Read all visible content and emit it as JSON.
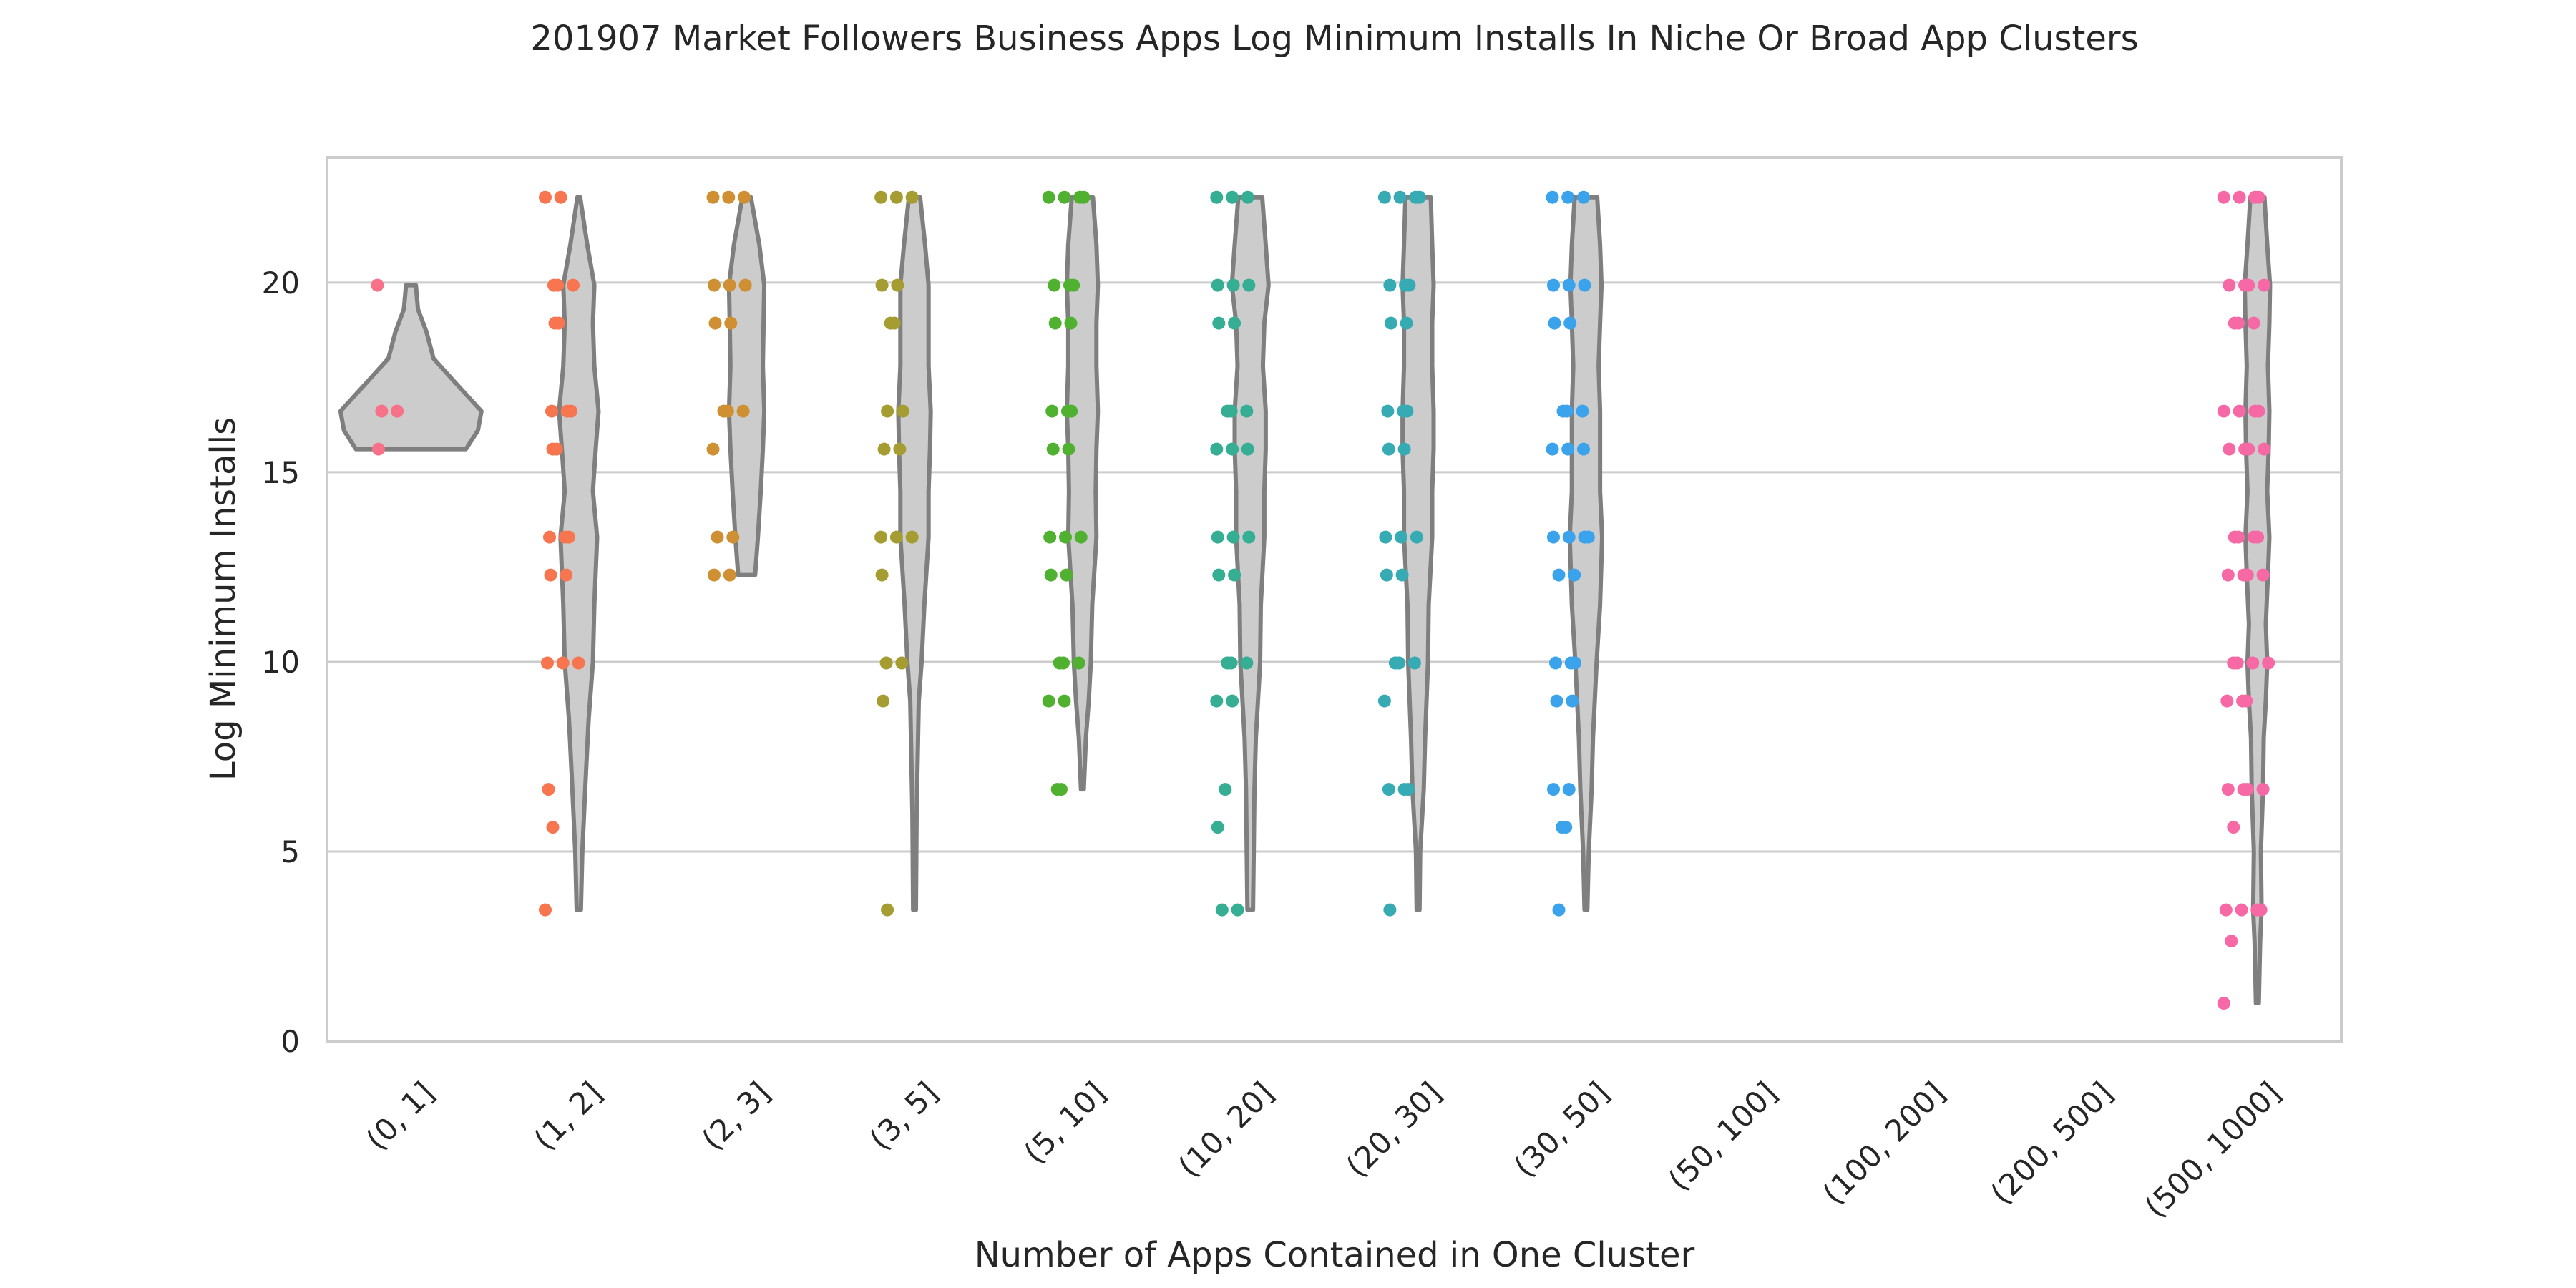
{
  "chart_data": {
    "type": "violin",
    "title": "201907 Market Followers Business Apps Log Minimum Installs In Niche Or Broad App Clusters",
    "xlabel": "Number of Apps Contained in One Cluster",
    "ylabel": "Log Minimum Installs",
    "ylim": [
      0,
      23.3
    ],
    "yticks": [
      0,
      5,
      10,
      15,
      20
    ],
    "grid": "horizontal",
    "categories": [
      "(0, 1]",
      "(1, 2]",
      "(2, 3]",
      "(3, 5]",
      "(5, 10]",
      "(10, 20]",
      "(20, 30]",
      "(30, 50]",
      "(50, 100]",
      "(100, 200]",
      "(200, 500]",
      "(500, 1000]"
    ],
    "colors": [
      "#f77189",
      "#f7754f",
      "#ce9032",
      "#a59d31",
      "#50b131",
      "#35ae93",
      "#37abb4",
      "#3ba3ec",
      "#b87ef4",
      "#f45fd0",
      "#f565af",
      "#f669a5"
    ],
    "violin_fill": "#cccccc",
    "violin_edge": "#7f7f7f",
    "series": [
      {
        "category": "(0, 1]",
        "points": [
          19.93,
          16.61,
          16.61,
          15.61
        ],
        "violin": {
          "min": 15.61,
          "max": 19.93,
          "profile": [
            [
              15.61,
              0.78
            ],
            [
              16.1,
              0.95
            ],
            [
              16.61,
              1.0
            ],
            [
              17.3,
              0.66
            ],
            [
              18.0,
              0.32
            ],
            [
              18.7,
              0.22
            ],
            [
              19.3,
              0.1
            ],
            [
              19.93,
              0.07
            ]
          ]
        }
      },
      {
        "category": "(1, 2]",
        "points": [
          22.25,
          22.25,
          19.93,
          19.93,
          19.93,
          18.93,
          18.93,
          16.61,
          16.61,
          16.61,
          15.61,
          15.61,
          13.29,
          13.29,
          13.29,
          12.29,
          12.29,
          9.97,
          9.97,
          9.97,
          6.64,
          5.64,
          3.46
        ],
        "violin": {
          "min": 3.46,
          "max": 22.25,
          "profile": [
            [
              3.46,
              0.03
            ],
            [
              5.0,
              0.05
            ],
            [
              7.0,
              0.1
            ],
            [
              8.5,
              0.14
            ],
            [
              10.0,
              0.2
            ],
            [
              11.5,
              0.22
            ],
            [
              13.29,
              0.26
            ],
            [
              14.5,
              0.2
            ],
            [
              15.61,
              0.24
            ],
            [
              16.61,
              0.28
            ],
            [
              17.8,
              0.22
            ],
            [
              18.93,
              0.2
            ],
            [
              19.93,
              0.22
            ],
            [
              21.0,
              0.12
            ],
            [
              22.25,
              0.02
            ]
          ]
        }
      },
      {
        "category": "(2, 3]",
        "points": [
          22.25,
          22.25,
          22.25,
          19.93,
          19.93,
          19.93,
          18.93,
          18.93,
          16.61,
          16.61,
          16.61,
          15.61,
          13.29,
          13.29,
          12.29,
          12.29
        ],
        "violin": {
          "min": 12.29,
          "max": 22.25,
          "profile": [
            [
              12.29,
              0.12
            ],
            [
              13.29,
              0.16
            ],
            [
              14.5,
              0.2
            ],
            [
              15.61,
              0.23
            ],
            [
              16.61,
              0.25
            ],
            [
              17.8,
              0.23
            ],
            [
              18.93,
              0.24
            ],
            [
              19.93,
              0.25
            ],
            [
              21.0,
              0.18
            ],
            [
              22.25,
              0.06
            ]
          ]
        }
      },
      {
        "category": "(3, 5]",
        "points": [
          22.25,
          22.25,
          22.25,
          19.93,
          19.93,
          18.93,
          18.93,
          16.61,
          16.61,
          15.61,
          15.61,
          13.29,
          13.29,
          13.29,
          12.29,
          9.97,
          9.97,
          8.97,
          3.46
        ],
        "violin": {
          "min": 3.46,
          "max": 22.25,
          "profile": [
            [
              3.46,
              0.02
            ],
            [
              6.0,
              0.03
            ],
            [
              8.97,
              0.06
            ],
            [
              9.97,
              0.1
            ],
            [
              11.5,
              0.14
            ],
            [
              13.29,
              0.2
            ],
            [
              14.5,
              0.2
            ],
            [
              15.61,
              0.22
            ],
            [
              16.61,
              0.23
            ],
            [
              17.8,
              0.2
            ],
            [
              18.93,
              0.2
            ],
            [
              19.93,
              0.2
            ],
            [
              21.0,
              0.15
            ],
            [
              22.25,
              0.08
            ]
          ]
        }
      },
      {
        "category": "(5, 10]",
        "points": [
          22.25,
          22.25,
          22.25,
          22.25,
          19.93,
          19.93,
          19.93,
          18.93,
          18.93,
          16.61,
          16.61,
          16.61,
          15.61,
          15.61,
          13.29,
          13.29,
          13.29,
          12.29,
          12.29,
          9.97,
          9.97,
          9.97,
          8.97,
          8.97,
          6.64,
          6.64
        ],
        "violin": {
          "min": 6.64,
          "max": 22.25,
          "profile": [
            [
              6.64,
              0.02
            ],
            [
              8.0,
              0.05
            ],
            [
              8.97,
              0.09
            ],
            [
              9.97,
              0.12
            ],
            [
              11.5,
              0.14
            ],
            [
              13.29,
              0.2
            ],
            [
              14.5,
              0.19
            ],
            [
              15.61,
              0.2
            ],
            [
              16.61,
              0.22
            ],
            [
              17.8,
              0.2
            ],
            [
              18.93,
              0.2
            ],
            [
              19.93,
              0.22
            ],
            [
              21.0,
              0.2
            ],
            [
              22.25,
              0.15
            ]
          ]
        }
      },
      {
        "category": "(10, 20]",
        "points": [
          22.25,
          22.25,
          22.25,
          19.93,
          19.93,
          19.93,
          18.93,
          18.93,
          16.61,
          16.61,
          16.61,
          15.61,
          15.61,
          15.61,
          13.29,
          13.29,
          13.29,
          12.29,
          12.29,
          9.97,
          9.97,
          9.97,
          8.97,
          8.97,
          6.64,
          5.64,
          3.46,
          3.46
        ],
        "violin": {
          "min": 3.46,
          "max": 22.25,
          "profile": [
            [
              3.46,
              0.04
            ],
            [
              5.0,
              0.05
            ],
            [
              6.64,
              0.06
            ],
            [
              8.0,
              0.08
            ],
            [
              9.97,
              0.14
            ],
            [
              11.5,
              0.15
            ],
            [
              13.29,
              0.2
            ],
            [
              14.5,
              0.2
            ],
            [
              15.61,
              0.22
            ],
            [
              16.61,
              0.22
            ],
            [
              17.8,
              0.18
            ],
            [
              18.93,
              0.2
            ],
            [
              19.93,
              0.26
            ],
            [
              21.0,
              0.22
            ],
            [
              22.25,
              0.17
            ]
          ]
        }
      },
      {
        "category": "(20, 30]",
        "points": [
          22.25,
          22.25,
          22.25,
          22.25,
          19.93,
          19.93,
          19.93,
          18.93,
          18.93,
          16.61,
          16.61,
          16.61,
          15.61,
          15.61,
          13.29,
          13.29,
          13.29,
          12.29,
          12.29,
          9.97,
          9.97,
          9.97,
          8.97,
          6.64,
          6.64,
          6.64,
          3.46
        ],
        "violin": {
          "min": 3.46,
          "max": 22.25,
          "profile": [
            [
              3.46,
              0.02
            ],
            [
              5.0,
              0.03
            ],
            [
              6.64,
              0.08
            ],
            [
              8.0,
              0.1
            ],
            [
              9.97,
              0.14
            ],
            [
              11.5,
              0.15
            ],
            [
              13.29,
              0.2
            ],
            [
              14.5,
              0.2
            ],
            [
              15.61,
              0.22
            ],
            [
              16.61,
              0.22
            ],
            [
              17.8,
              0.2
            ],
            [
              18.93,
              0.2
            ],
            [
              19.93,
              0.22
            ],
            [
              21.0,
              0.2
            ],
            [
              22.25,
              0.18
            ]
          ]
        }
      },
      {
        "category": "(30, 50]",
        "points": [
          22.25,
          22.25,
          22.25,
          19.93,
          19.93,
          19.93,
          18.93,
          18.93,
          16.61,
          16.61,
          16.61,
          15.61,
          15.61,
          15.61,
          13.29,
          13.29,
          13.29,
          13.29,
          12.29,
          12.29,
          9.97,
          9.97,
          9.97,
          8.97,
          8.97,
          6.64,
          6.64,
          5.64,
          5.64,
          3.46
        ],
        "violin": {
          "min": 3.46,
          "max": 22.25,
          "profile": [
            [
              3.46,
              0.02
            ],
            [
              5.0,
              0.04
            ],
            [
              6.64,
              0.08
            ],
            [
              8.0,
              0.1
            ],
            [
              9.97,
              0.15
            ],
            [
              11.5,
              0.2
            ],
            [
              13.29,
              0.23
            ],
            [
              14.5,
              0.2
            ],
            [
              15.61,
              0.2
            ],
            [
              16.61,
              0.2
            ],
            [
              17.8,
              0.18
            ],
            [
              18.93,
              0.2
            ],
            [
              19.93,
              0.22
            ],
            [
              21.0,
              0.2
            ],
            [
              22.25,
              0.16
            ]
          ]
        }
      },
      {
        "category": "(50, 100]",
        "points": [],
        "violin": null
      },
      {
        "category": "(100, 200]",
        "points": [],
        "violin": null
      },
      {
        "category": "(200, 500]",
        "points": [],
        "violin": null
      },
      {
        "category": "(500, 1000]",
        "points": [
          22.25,
          22.25,
          22.25,
          22.25,
          19.93,
          19.93,
          19.93,
          19.93,
          18.93,
          18.93,
          18.93,
          16.61,
          16.61,
          16.61,
          16.61,
          15.61,
          15.61,
          15.61,
          15.61,
          13.29,
          13.29,
          13.29,
          13.29,
          12.29,
          12.29,
          12.29,
          12.29,
          9.97,
          9.97,
          9.97,
          9.97,
          8.97,
          8.97,
          8.97,
          6.64,
          6.64,
          6.64,
          6.64,
          5.64,
          3.46,
          3.46,
          3.46,
          3.46,
          2.64,
          1.0
        ],
        "violin": {
          "min": 1.0,
          "max": 22.25,
          "profile": [
            [
              1.0,
              0.02
            ],
            [
              2.64,
              0.04
            ],
            [
              3.46,
              0.06
            ],
            [
              5.0,
              0.05
            ],
            [
              6.64,
              0.08
            ],
            [
              8.0,
              0.09
            ],
            [
              8.97,
              0.12
            ],
            [
              9.97,
              0.14
            ],
            [
              11.0,
              0.12
            ],
            [
              12.29,
              0.15
            ],
            [
              13.29,
              0.17
            ],
            [
              14.5,
              0.14
            ],
            [
              15.61,
              0.16
            ],
            [
              16.61,
              0.17
            ],
            [
              17.8,
              0.15
            ],
            [
              18.93,
              0.17
            ],
            [
              19.93,
              0.18
            ],
            [
              21.0,
              0.14
            ],
            [
              22.25,
              0.1
            ]
          ]
        }
      }
    ]
  }
}
